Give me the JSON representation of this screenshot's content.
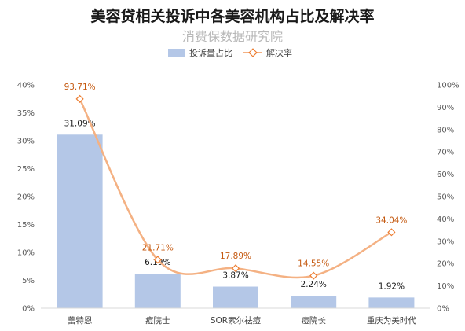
{
  "chart_data": {
    "type": "bar+line",
    "title": "美容贷相关投诉中各美容机构占比及解决率",
    "subtitle": "消费保数据研究院",
    "categories": [
      "蕾特恩",
      "痘院士",
      "SOR索尔祛痘",
      "痘院长",
      "重庆为美时代"
    ],
    "series": [
      {
        "name": "投诉量占比",
        "type": "bar",
        "axis": "left",
        "values": [
          31.09,
          6.19,
          3.87,
          2.24,
          1.92
        ],
        "labels": [
          "31.09%",
          "6.19%",
          "3.87%",
          "2.24%",
          "1.92%"
        ],
        "color": "#b4c7e7"
      },
      {
        "name": "解决率",
        "type": "line",
        "axis": "right",
        "values": [
          93.71,
          21.71,
          17.89,
          14.55,
          34.04
        ],
        "labels": [
          "93.71%",
          "21.71%",
          "17.89%",
          "14.55%",
          "34.04%"
        ],
        "color": "#f4b183",
        "marker_color": "#ed7d31",
        "label_color": "#c55a11"
      }
    ],
    "y_left": {
      "range": [
        0,
        40
      ],
      "ticks": [
        "0%",
        "5%",
        "10%",
        "15%",
        "20%",
        "25%",
        "30%",
        "35%",
        "40%"
      ]
    },
    "y_right": {
      "range": [
        0,
        100
      ],
      "ticks": [
        "0%",
        "10%",
        "20%",
        "30%",
        "40%",
        "50%",
        "60%",
        "70%",
        "80%",
        "90%",
        "100%"
      ]
    },
    "legend_position": "top",
    "grid": false
  }
}
